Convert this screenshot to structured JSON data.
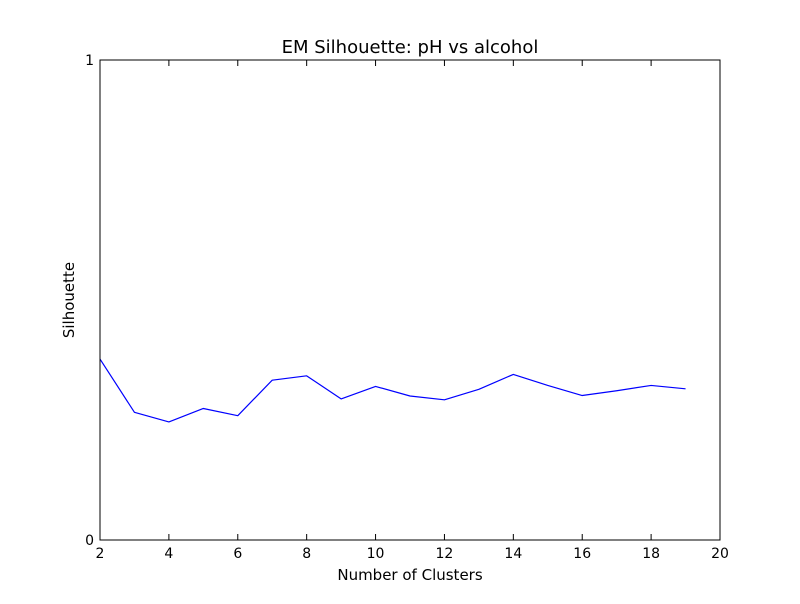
{
  "chart_data": {
    "type": "line",
    "title": "EM Silhouette: pH vs alcohol",
    "xlabel": "Number of Clusters",
    "ylabel": "Silhouette",
    "xlim": [
      2,
      20
    ],
    "ylim": [
      0,
      1
    ],
    "xticks": [
      "2",
      "4",
      "6",
      "8",
      "10",
      "12",
      "14",
      "16",
      "18",
      "20"
    ],
    "yticks": [
      "0",
      "1"
    ],
    "grid": false,
    "series": [
      {
        "color": "#0000ff",
        "x": [
          2,
          3,
          4,
          5,
          6,
          7,
          8,
          9,
          10,
          11,
          12,
          13,
          14,
          15,
          16,
          17,
          18,
          19
        ],
        "values": [
          0.377,
          0.266,
          0.246,
          0.274,
          0.259,
          0.333,
          0.342,
          0.294,
          0.32,
          0.3,
          0.292,
          0.314,
          0.345,
          0.322,
          0.301,
          0.311,
          0.322,
          0.315
        ]
      }
    ]
  }
}
